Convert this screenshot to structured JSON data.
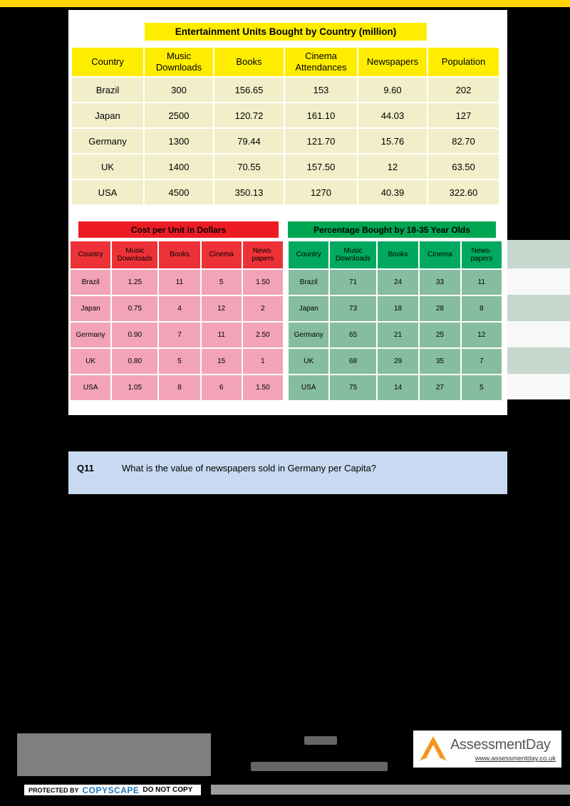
{
  "colors": {
    "top_bar": "#FFD400",
    "table_header_yellow": "#FFED00",
    "table_body_yellow": "#F1EEC9",
    "cost_red": "#ED1C24",
    "cost_pink": "#F2A3B8",
    "pct_green": "#00A651",
    "pct_sage": "#86BD9F",
    "question_blue": "#C7DAF1",
    "logo_orange": "#F7941E",
    "copyscape_blue": "#1B75BC"
  },
  "entertainment_table": {
    "title": "Entertainment Units Bought by Country (million)",
    "headers": [
      "Country",
      "Music Downloads",
      "Books",
      "Cinema Attendances",
      "Newspapers",
      "Population"
    ],
    "rows": [
      [
        "Brazil",
        "300",
        "156.65",
        "153",
        "9.60",
        "202"
      ],
      [
        "Japan",
        "2500",
        "120.72",
        "161.10",
        "44.03",
        "127"
      ],
      [
        "Germany",
        "1300",
        "79.44",
        "121.70",
        "15.76",
        "82.70"
      ],
      [
        "UK",
        "1400",
        "70.55",
        "157.50",
        "12",
        "63.50"
      ],
      [
        "USA",
        "4500",
        "350.13",
        "1270",
        "40.39",
        "322.60"
      ]
    ]
  },
  "cost_table": {
    "title": "Cost per Unit in Dollars",
    "headers": [
      "Country",
      "Music Downloads",
      "Books",
      "Cinema",
      "News-papers"
    ],
    "rows": [
      [
        "Brazil",
        "1.25",
        "11",
        "5",
        "1.50"
      ],
      [
        "Japan",
        "0.75",
        "4",
        "12",
        "2"
      ],
      [
        "Germany",
        "0.90",
        "7",
        "11",
        "2.50"
      ],
      [
        "UK",
        "0.80",
        "5",
        "15",
        "1"
      ],
      [
        "USA",
        "1.05",
        "8",
        "6",
        "1.50"
      ]
    ]
  },
  "percentage_table": {
    "title": "Percentage Bought by 18-35 Year Olds",
    "headers": [
      "Country",
      "Music Downloads",
      "Books",
      "Cinema",
      "News-papers"
    ],
    "rows": [
      [
        "Brazil",
        "71",
        "24",
        "33",
        "11"
      ],
      [
        "Japan",
        "73",
        "18",
        "28",
        "8"
      ],
      [
        "Germany",
        "65",
        "21",
        "25",
        "12"
      ],
      [
        "UK",
        "68",
        "29",
        "35",
        "7"
      ],
      [
        "USA",
        "75",
        "14",
        "27",
        "5"
      ]
    ]
  },
  "question": {
    "number": "Q11",
    "text": "What is the value of newspapers sold in Germany per Capita?"
  },
  "footer": {
    "brand": "AssessmentDay",
    "url": "www.assessmentday.co.uk",
    "copyscape": {
      "protected_by": "PROTECTED BY",
      "brand": "COPYSCAPE",
      "suffix": "DO NOT COPY"
    }
  }
}
